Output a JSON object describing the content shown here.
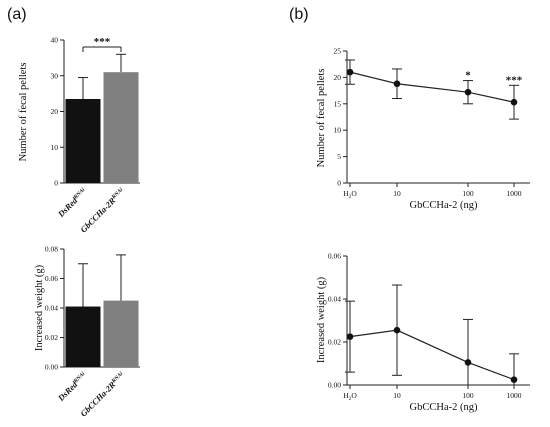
{
  "panels": {
    "a": "(a)",
    "b": "(b)"
  },
  "chart_data": [
    {
      "id": "a1",
      "type": "bar",
      "ylabel": "Number of fecal pellets",
      "ylim": [
        0,
        40
      ],
      "yticks": [
        "0",
        "10",
        "20",
        "30",
        "40"
      ],
      "categories": [
        {
          "base": "DsRed",
          "sup": "RNAi"
        },
        {
          "base": "GbCCHa-2R",
          "sup": "RNAi"
        }
      ],
      "values": [
        23.5,
        31
      ],
      "errors": [
        6,
        5
      ],
      "colors": [
        "#111111",
        "#808080"
      ],
      "significance": "***"
    },
    {
      "id": "a2",
      "type": "bar",
      "ylabel": "Increased weight (g)",
      "ylim": [
        0,
        0.08
      ],
      "yticks": [
        "0.00",
        "0.02",
        "0.04",
        "0.06",
        "0.08"
      ],
      "categories": [
        {
          "base": "DsRed",
          "sup": "RNAi"
        },
        {
          "base": "GbCCHa-2R",
          "sup": "RNAi"
        }
      ],
      "values": [
        0.041,
        0.045
      ],
      "errors": [
        0.029,
        0.031
      ],
      "colors": [
        "#111111",
        "#808080"
      ]
    },
    {
      "id": "b1",
      "type": "line",
      "ylabel": "Number of fecal pellets",
      "xlabel": "GbCCHa-2 (ng)",
      "ylim": [
        0,
        25
      ],
      "yticks": [
        "0",
        "5",
        "10",
        "15",
        "20",
        "25"
      ],
      "categories": [
        "H2O",
        "10",
        "100",
        "1000"
      ],
      "values": [
        21,
        18.8,
        17.2,
        15.3
      ],
      "errors": [
        2.3,
        2.8,
        2.2,
        3.2
      ],
      "significance": [
        "",
        "",
        "*",
        "***"
      ]
    },
    {
      "id": "b2",
      "type": "line",
      "ylabel": "Increased weight (g)",
      "xlabel": "GbCCHa-2 (ng)",
      "ylim": [
        0,
        0.06
      ],
      "yticks": [
        "0.00",
        "0.02",
        "0.04",
        "0.06"
      ],
      "categories": [
        "H2O",
        "10",
        "100",
        "1000"
      ],
      "values": [
        0.0225,
        0.0255,
        0.0105,
        0.0025
      ],
      "errors": [
        0.0165,
        0.021,
        0.02,
        0.012
      ]
    }
  ]
}
